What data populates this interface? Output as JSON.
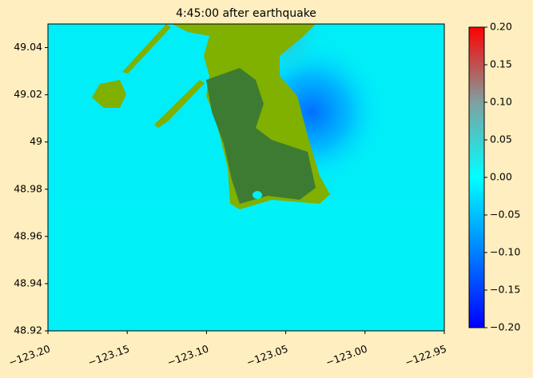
{
  "chart_data": {
    "type": "heatmap",
    "title": "4:45:00 after earthquake",
    "xlim": [
      -123.2,
      -122.95
    ],
    "xticks": [
      {
        "value": -123.2,
        "label": "−123.20"
      },
      {
        "value": -123.15,
        "label": "−123.15"
      },
      {
        "value": -123.1,
        "label": "−123.10"
      },
      {
        "value": -123.05,
        "label": "−123.05"
      },
      {
        "value": -123.0,
        "label": "−123.00"
      },
      {
        "value": -122.95,
        "label": "−122.95"
      }
    ],
    "ylim": [
      48.92,
      49.05
    ],
    "yticks": [
      48.92,
      48.94,
      48.96,
      48.98,
      49.0,
      49.02,
      49.04
    ],
    "clim": [
      -0.2,
      0.2
    ],
    "cticks": [
      {
        "value": -0.2,
        "label": "−0.20"
      },
      {
        "value": -0.15,
        "label": "−0.15"
      },
      {
        "value": -0.1,
        "label": "−0.10"
      },
      {
        "value": -0.05,
        "label": "−0.05"
      },
      {
        "value": 0.0,
        "label": "0.00"
      },
      {
        "value": 0.05,
        "label": "0.05"
      },
      {
        "value": 0.1,
        "label": "0.10"
      },
      {
        "value": 0.15,
        "label": "0.15"
      },
      {
        "value": 0.2,
        "label": "0.20"
      }
    ]
  }
}
